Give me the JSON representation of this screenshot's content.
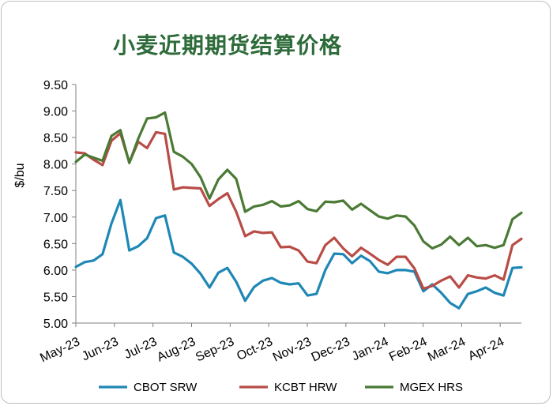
{
  "chart_data": {
    "type": "line",
    "title": "小麦近期期货结算价格",
    "xlabel": "",
    "ylabel": "$/bu",
    "ylim": [
      5.0,
      9.5
    ],
    "yticks": [
      "5.00",
      "5.50",
      "6.00",
      "6.50",
      "7.00",
      "7.50",
      "8.00",
      "8.50",
      "9.00",
      "9.50"
    ],
    "xticks": [
      "May-23",
      "Jun-23",
      "Jul-23",
      "Aug-23",
      "Sep-23",
      "Oct-23",
      "Nov-23",
      "Dec-23",
      "Jan-24",
      "Feb-24",
      "Mar-24",
      "Apr-24"
    ],
    "legend_position": "bottom",
    "grid": false,
    "series": [
      {
        "name": "CBOT SRW",
        "color": "#1f87b5",
        "values": [
          6.06,
          6.15,
          6.18,
          6.3,
          6.88,
          7.32,
          6.37,
          6.45,
          6.6,
          6.98,
          7.03,
          6.33,
          6.25,
          6.12,
          5.93,
          5.67,
          5.95,
          6.04,
          5.78,
          5.42,
          5.68,
          5.8,
          5.85,
          5.76,
          5.73,
          5.75,
          5.52,
          5.55,
          6.0,
          6.31,
          6.3,
          6.13,
          6.27,
          6.17,
          5.97,
          5.94,
          6.0,
          6.0,
          5.97,
          5.6,
          5.73,
          5.57,
          5.38,
          5.28,
          5.55,
          5.6,
          5.67,
          5.57,
          5.52,
          6.04,
          6.05
        ]
      },
      {
        "name": "KCBT HRW",
        "color": "#b84c46",
        "values": [
          8.22,
          8.2,
          8.08,
          7.98,
          8.44,
          8.58,
          8.03,
          8.42,
          8.3,
          8.6,
          8.57,
          7.52,
          7.56,
          7.55,
          7.54,
          7.21,
          7.34,
          7.45,
          7.1,
          6.64,
          6.73,
          6.7,
          6.71,
          6.43,
          6.44,
          6.37,
          6.16,
          6.13,
          6.47,
          6.61,
          6.41,
          6.26,
          6.42,
          6.31,
          6.19,
          6.1,
          6.25,
          6.25,
          6.03,
          5.65,
          5.7,
          5.8,
          5.88,
          5.67,
          5.9,
          5.86,
          5.84,
          5.9,
          5.82,
          6.47,
          6.59
        ]
      },
      {
        "name": "MGEX HRS",
        "color": "#4a7a34",
        "values": [
          8.04,
          8.18,
          8.12,
          8.06,
          8.53,
          8.64,
          8.02,
          8.48,
          8.86,
          8.88,
          8.97,
          8.23,
          8.14,
          8.0,
          7.75,
          7.35,
          7.71,
          7.89,
          7.72,
          7.1,
          7.2,
          7.23,
          7.3,
          7.2,
          7.22,
          7.3,
          7.15,
          7.11,
          7.29,
          7.28,
          7.31,
          7.14,
          7.25,
          7.13,
          7.01,
          6.97,
          7.03,
          7.01,
          6.84,
          6.54,
          6.41,
          6.48,
          6.63,
          6.47,
          6.61,
          6.45,
          6.47,
          6.42,
          6.47,
          6.96,
          7.08
        ]
      }
    ]
  }
}
